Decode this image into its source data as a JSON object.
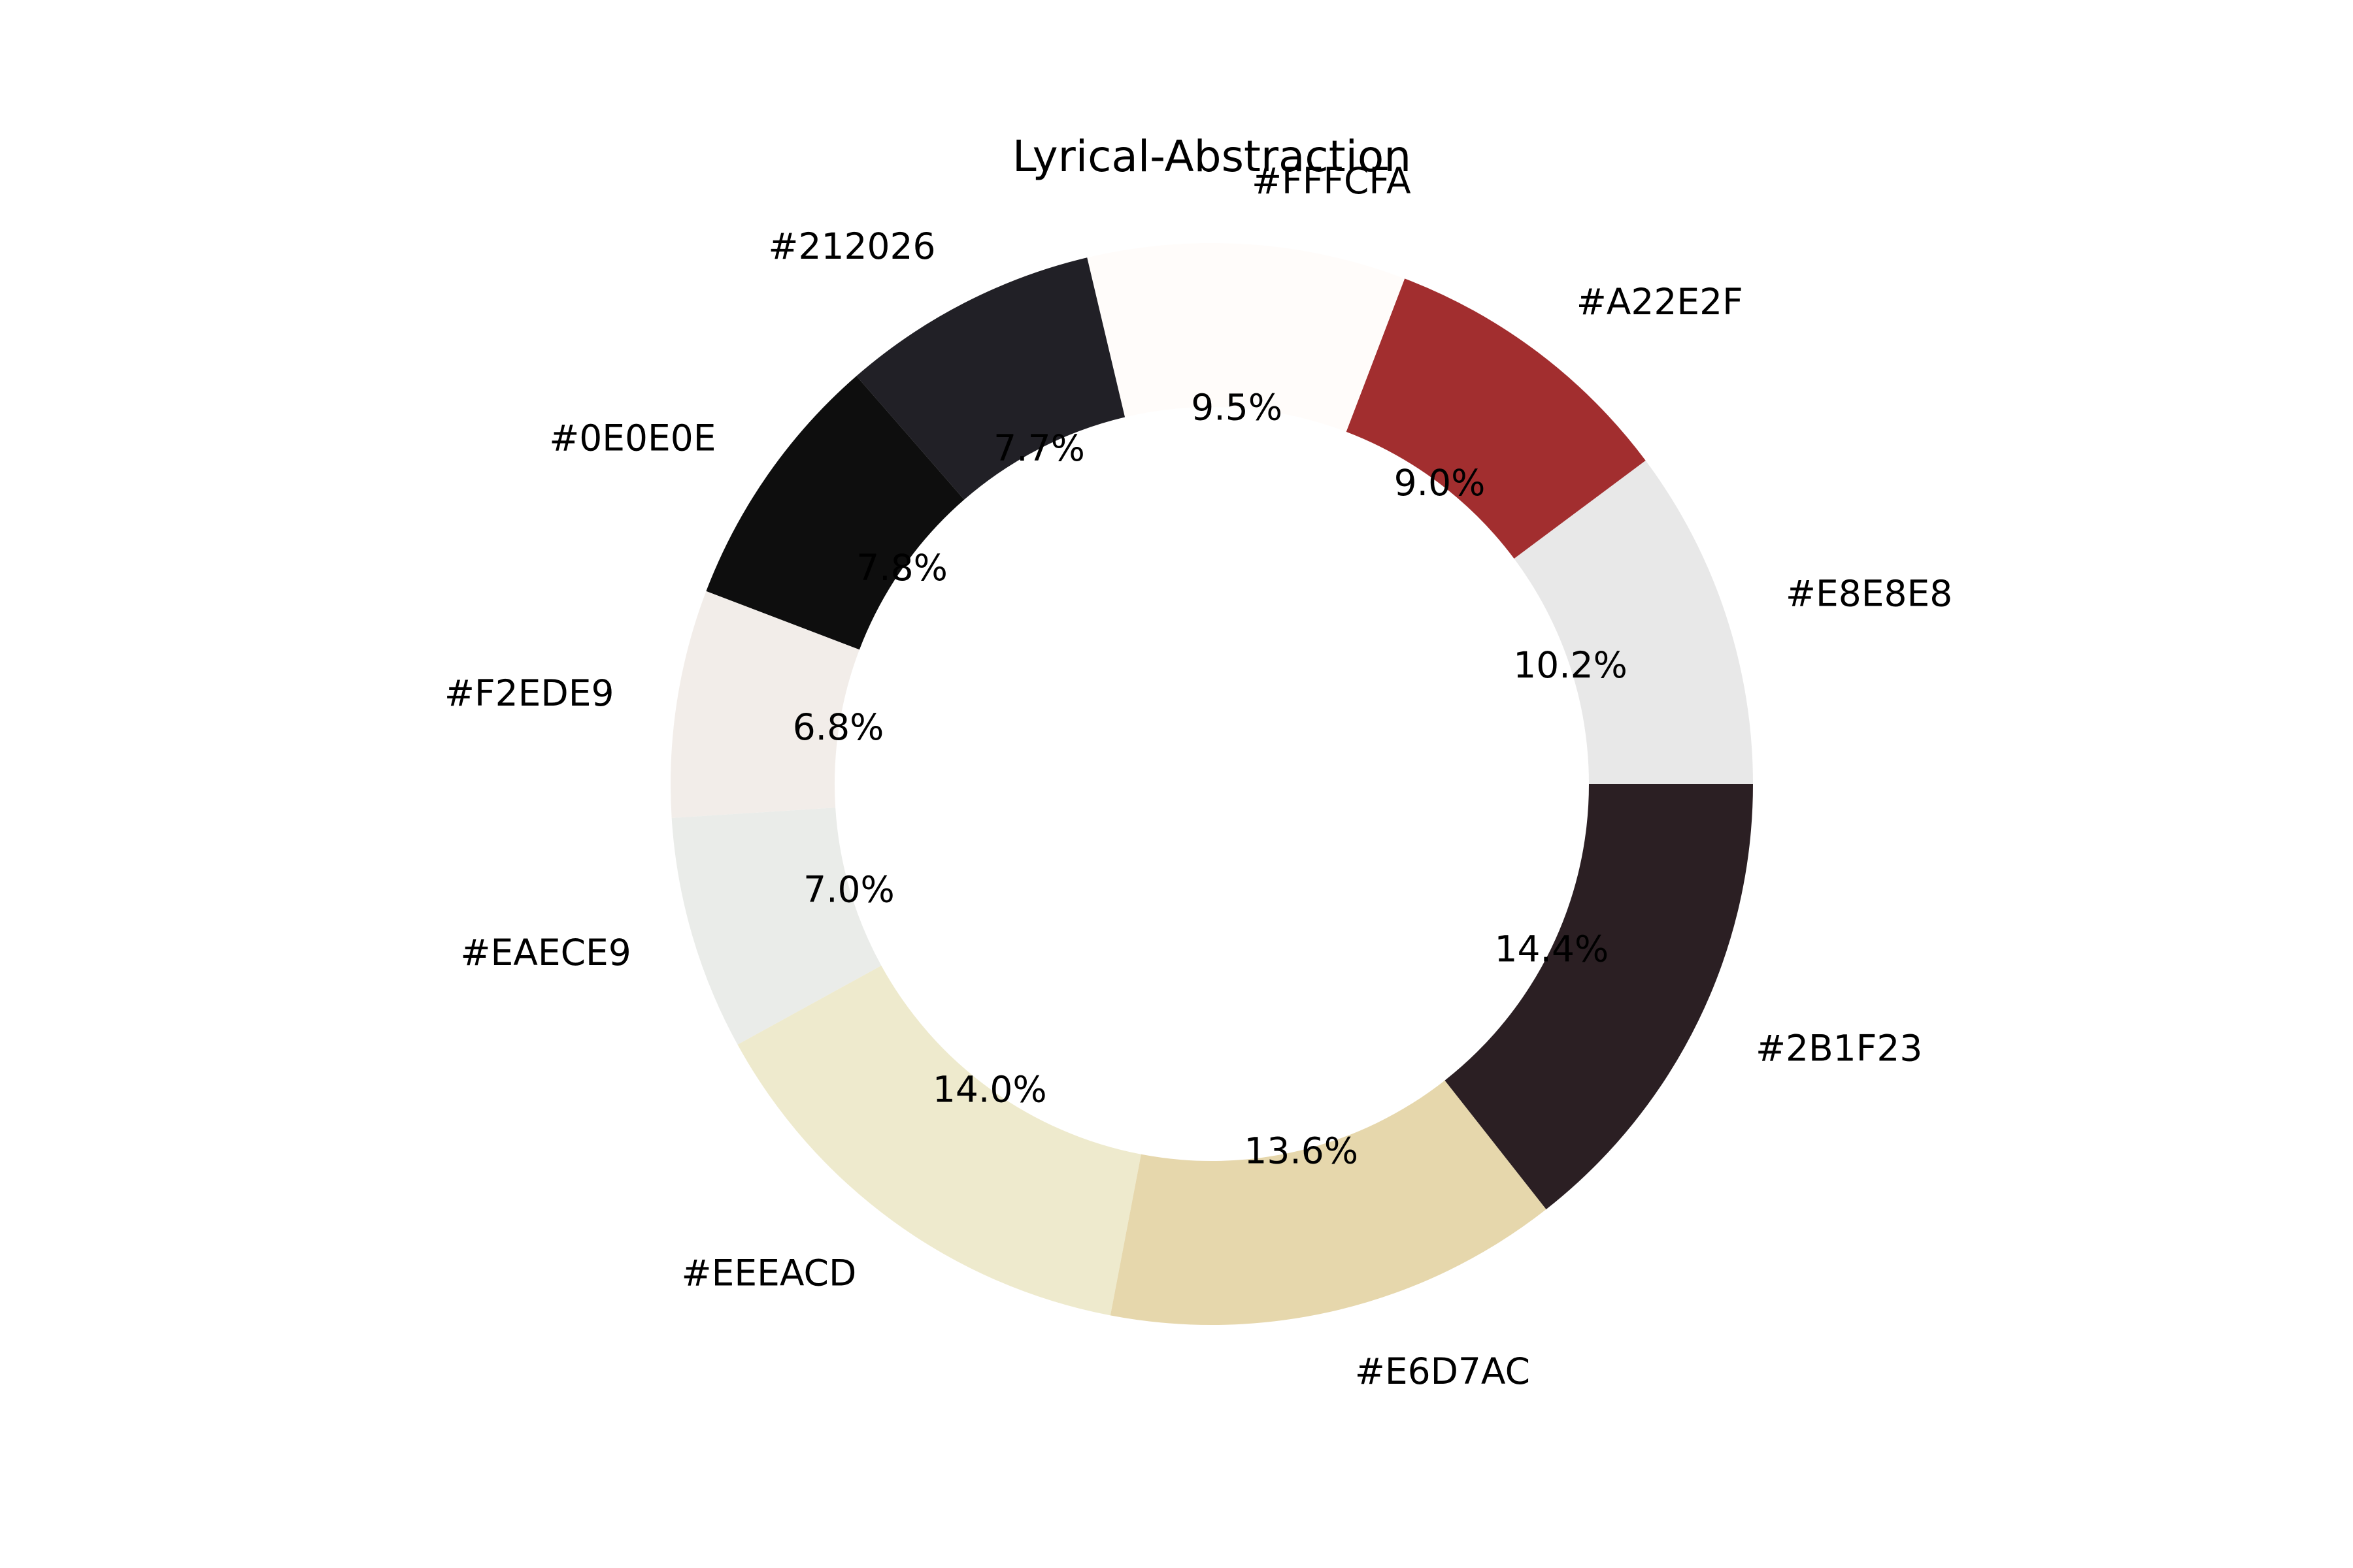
{
  "chart_data": {
    "type": "pie",
    "style": "donut",
    "title": "Lyrical-Abstraction",
    "start_angle_deg": 0,
    "direction": "counterclockwise",
    "slices": [
      {
        "label": "#E8E8E8",
        "value": 10.2,
        "pct_label": "10.2%",
        "color": "#E8E8E8"
      },
      {
        "label": "#A22E2F",
        "value": 9.0,
        "pct_label": "9.0%",
        "color": "#A22E2F"
      },
      {
        "label": "#FFFCFA",
        "value": 9.5,
        "pct_label": "9.5%",
        "color": "#FFFCFA"
      },
      {
        "label": "#212026",
        "value": 7.7,
        "pct_label": "7.7%",
        "color": "#212026"
      },
      {
        "label": "#0E0E0E",
        "value": 7.8,
        "pct_label": "7.8%",
        "color": "#0E0E0E"
      },
      {
        "label": "#F2EDE9",
        "value": 6.8,
        "pct_label": "6.8%",
        "color": "#F2EDE9"
      },
      {
        "label": "#EAECE9",
        "value": 7.0,
        "pct_label": "7.0%",
        "color": "#EAECE9"
      },
      {
        "label": "#EEEACD",
        "value": 14.0,
        "pct_label": "14.0%",
        "color": "#EEEACD"
      },
      {
        "label": "#E6D7AC",
        "value": 13.6,
        "pct_label": "13.6%",
        "color": "#E6D7AC"
      },
      {
        "label": "#2B1F23",
        "value": 14.4,
        "pct_label": "14.4%",
        "color": "#2B1F23"
      }
    ]
  }
}
